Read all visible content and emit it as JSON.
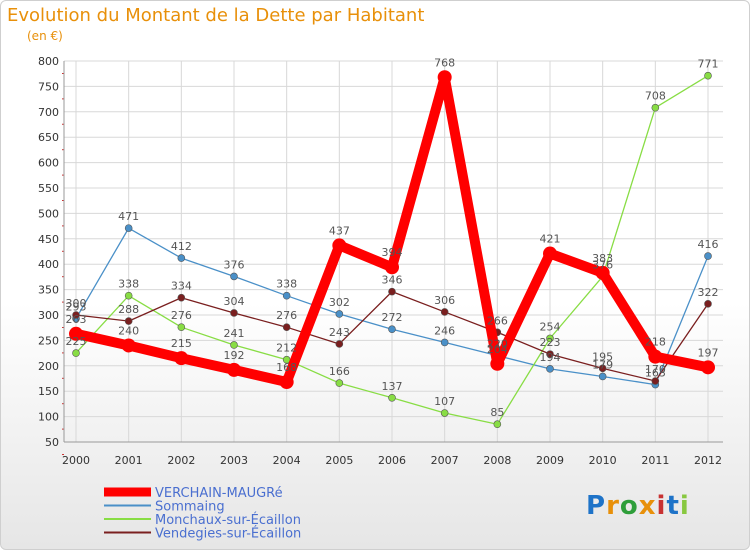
{
  "chart_data": {
    "type": "line",
    "title": "Evolution du Montant de la Dette par Habitant",
    "unit": "(en €)",
    "x": [
      "2000",
      "2001",
      "2002",
      "2003",
      "2004",
      "2005",
      "2006",
      "2007",
      "2008",
      "2009",
      "2010",
      "2011",
      "2012"
    ],
    "ylim": [
      50,
      800
    ],
    "yticks": [
      50,
      100,
      150,
      200,
      250,
      300,
      350,
      400,
      450,
      500,
      550,
      600,
      650,
      700,
      750,
      800
    ],
    "series": [
      {
        "name": "VERCHAIN-MAUGRé",
        "color": "#ff0000",
        "highlight": true,
        "values": [
          263,
          240,
          215,
          192,
          168,
          437,
          394,
          768,
          204,
          421,
          383,
          218,
          197
        ]
      },
      {
        "name": "Sommaing",
        "color": "#4a90c8",
        "highlight": false,
        "values": [
          293,
          471,
          412,
          376,
          338,
          302,
          272,
          246,
          220,
          194,
          179,
          163,
          416
        ]
      },
      {
        "name": "Monchaux-sur-Écaillon",
        "color": "#88dd44",
        "highlight": false,
        "values": [
          225,
          338,
          276,
          241,
          212,
          166,
          137,
          107,
          85,
          254,
          376,
          708,
          771
        ]
      },
      {
        "name": "Vendegies-sur-Écaillon",
        "color": "#7a1f1f",
        "highlight": false,
        "values": [
          300,
          288,
          334,
          304,
          276,
          243,
          346,
          306,
          266,
          223,
          195,
          170,
          322
        ]
      }
    ]
  },
  "logo": {
    "letters": [
      "P",
      "r",
      "o",
      "x",
      "i",
      "t",
      "i"
    ],
    "colors": [
      "#1e73c8",
      "#e8900a",
      "#2e9e3a",
      "#e8900a",
      "#c83232",
      "#1e73c8",
      "#88c840"
    ]
  }
}
